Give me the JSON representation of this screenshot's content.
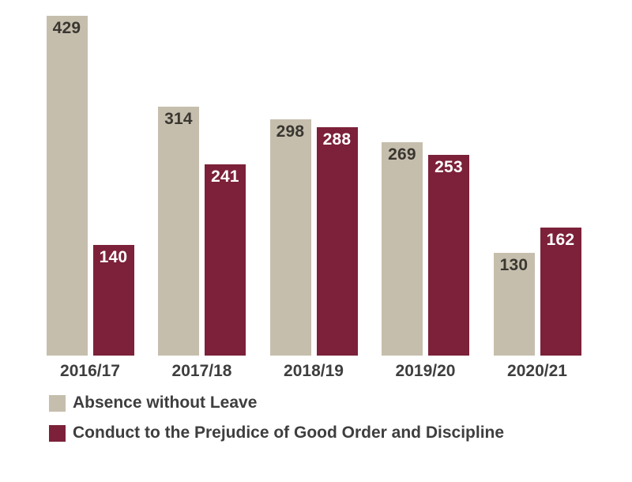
{
  "chart_data": {
    "type": "bar",
    "categories": [
      "2016/17",
      "2017/18",
      "2018/19",
      "2019/20",
      "2020/21"
    ],
    "series": [
      {
        "name": "Absence without Leave",
        "color": "#c6bead",
        "label_color": "#3a3731",
        "values": [
          429,
          314,
          298,
          269,
          130
        ]
      },
      {
        "name": "Conduct to the Prejudice of Good Order and Discipline",
        "color": "#7c2139",
        "label_color": "#ffffff",
        "values": [
          140,
          241,
          288,
          253,
          162
        ]
      }
    ],
    "ylim": [
      0,
      429
    ],
    "grid": false,
    "axis_lines": false,
    "legend_position": "bottom-left",
    "title": "",
    "xlabel": "",
    "ylabel": ""
  }
}
